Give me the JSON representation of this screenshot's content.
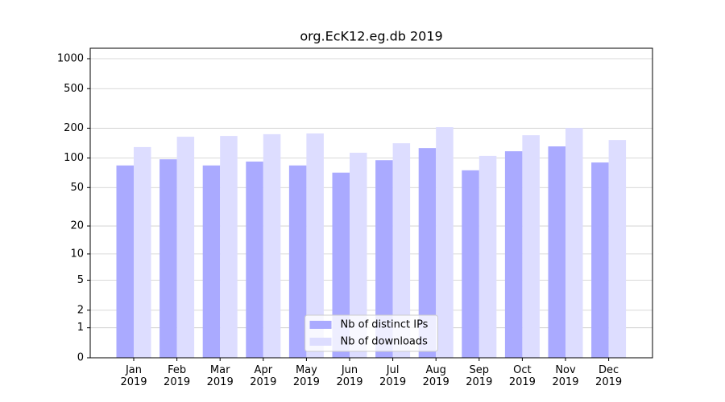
{
  "chart_data": {
    "type": "bar",
    "title": "org.EcK12.eg.db 2019",
    "categories": [
      "Jan\n2019",
      "Feb\n2019",
      "Mar\n2019",
      "Apr\n2019",
      "May\n2019",
      "Jun\n2019",
      "Jul\n2019",
      "Aug\n2019",
      "Sep\n2019",
      "Oct\n2019",
      "Nov\n2019",
      "Dec\n2019"
    ],
    "series": [
      {
        "name": "Nb of distinct IPs",
        "color": "#aaaaff",
        "values": [
          84,
          97,
          84,
          92,
          84,
          71,
          95,
          126,
          75,
          117,
          131,
          90
        ]
      },
      {
        "name": "Nb of downloads",
        "color": "#ddddff",
        "values": [
          129,
          164,
          167,
          174,
          177,
          113,
          141,
          205,
          105,
          170,
          201,
          152
        ]
      }
    ],
    "yscale": "log1p",
    "ylim": [
      0,
      1273
    ],
    "yticks": [
      0,
      1,
      2,
      5,
      10,
      20,
      50,
      100,
      200,
      500,
      1000
    ],
    "grid": true,
    "legend": "lower center"
  }
}
